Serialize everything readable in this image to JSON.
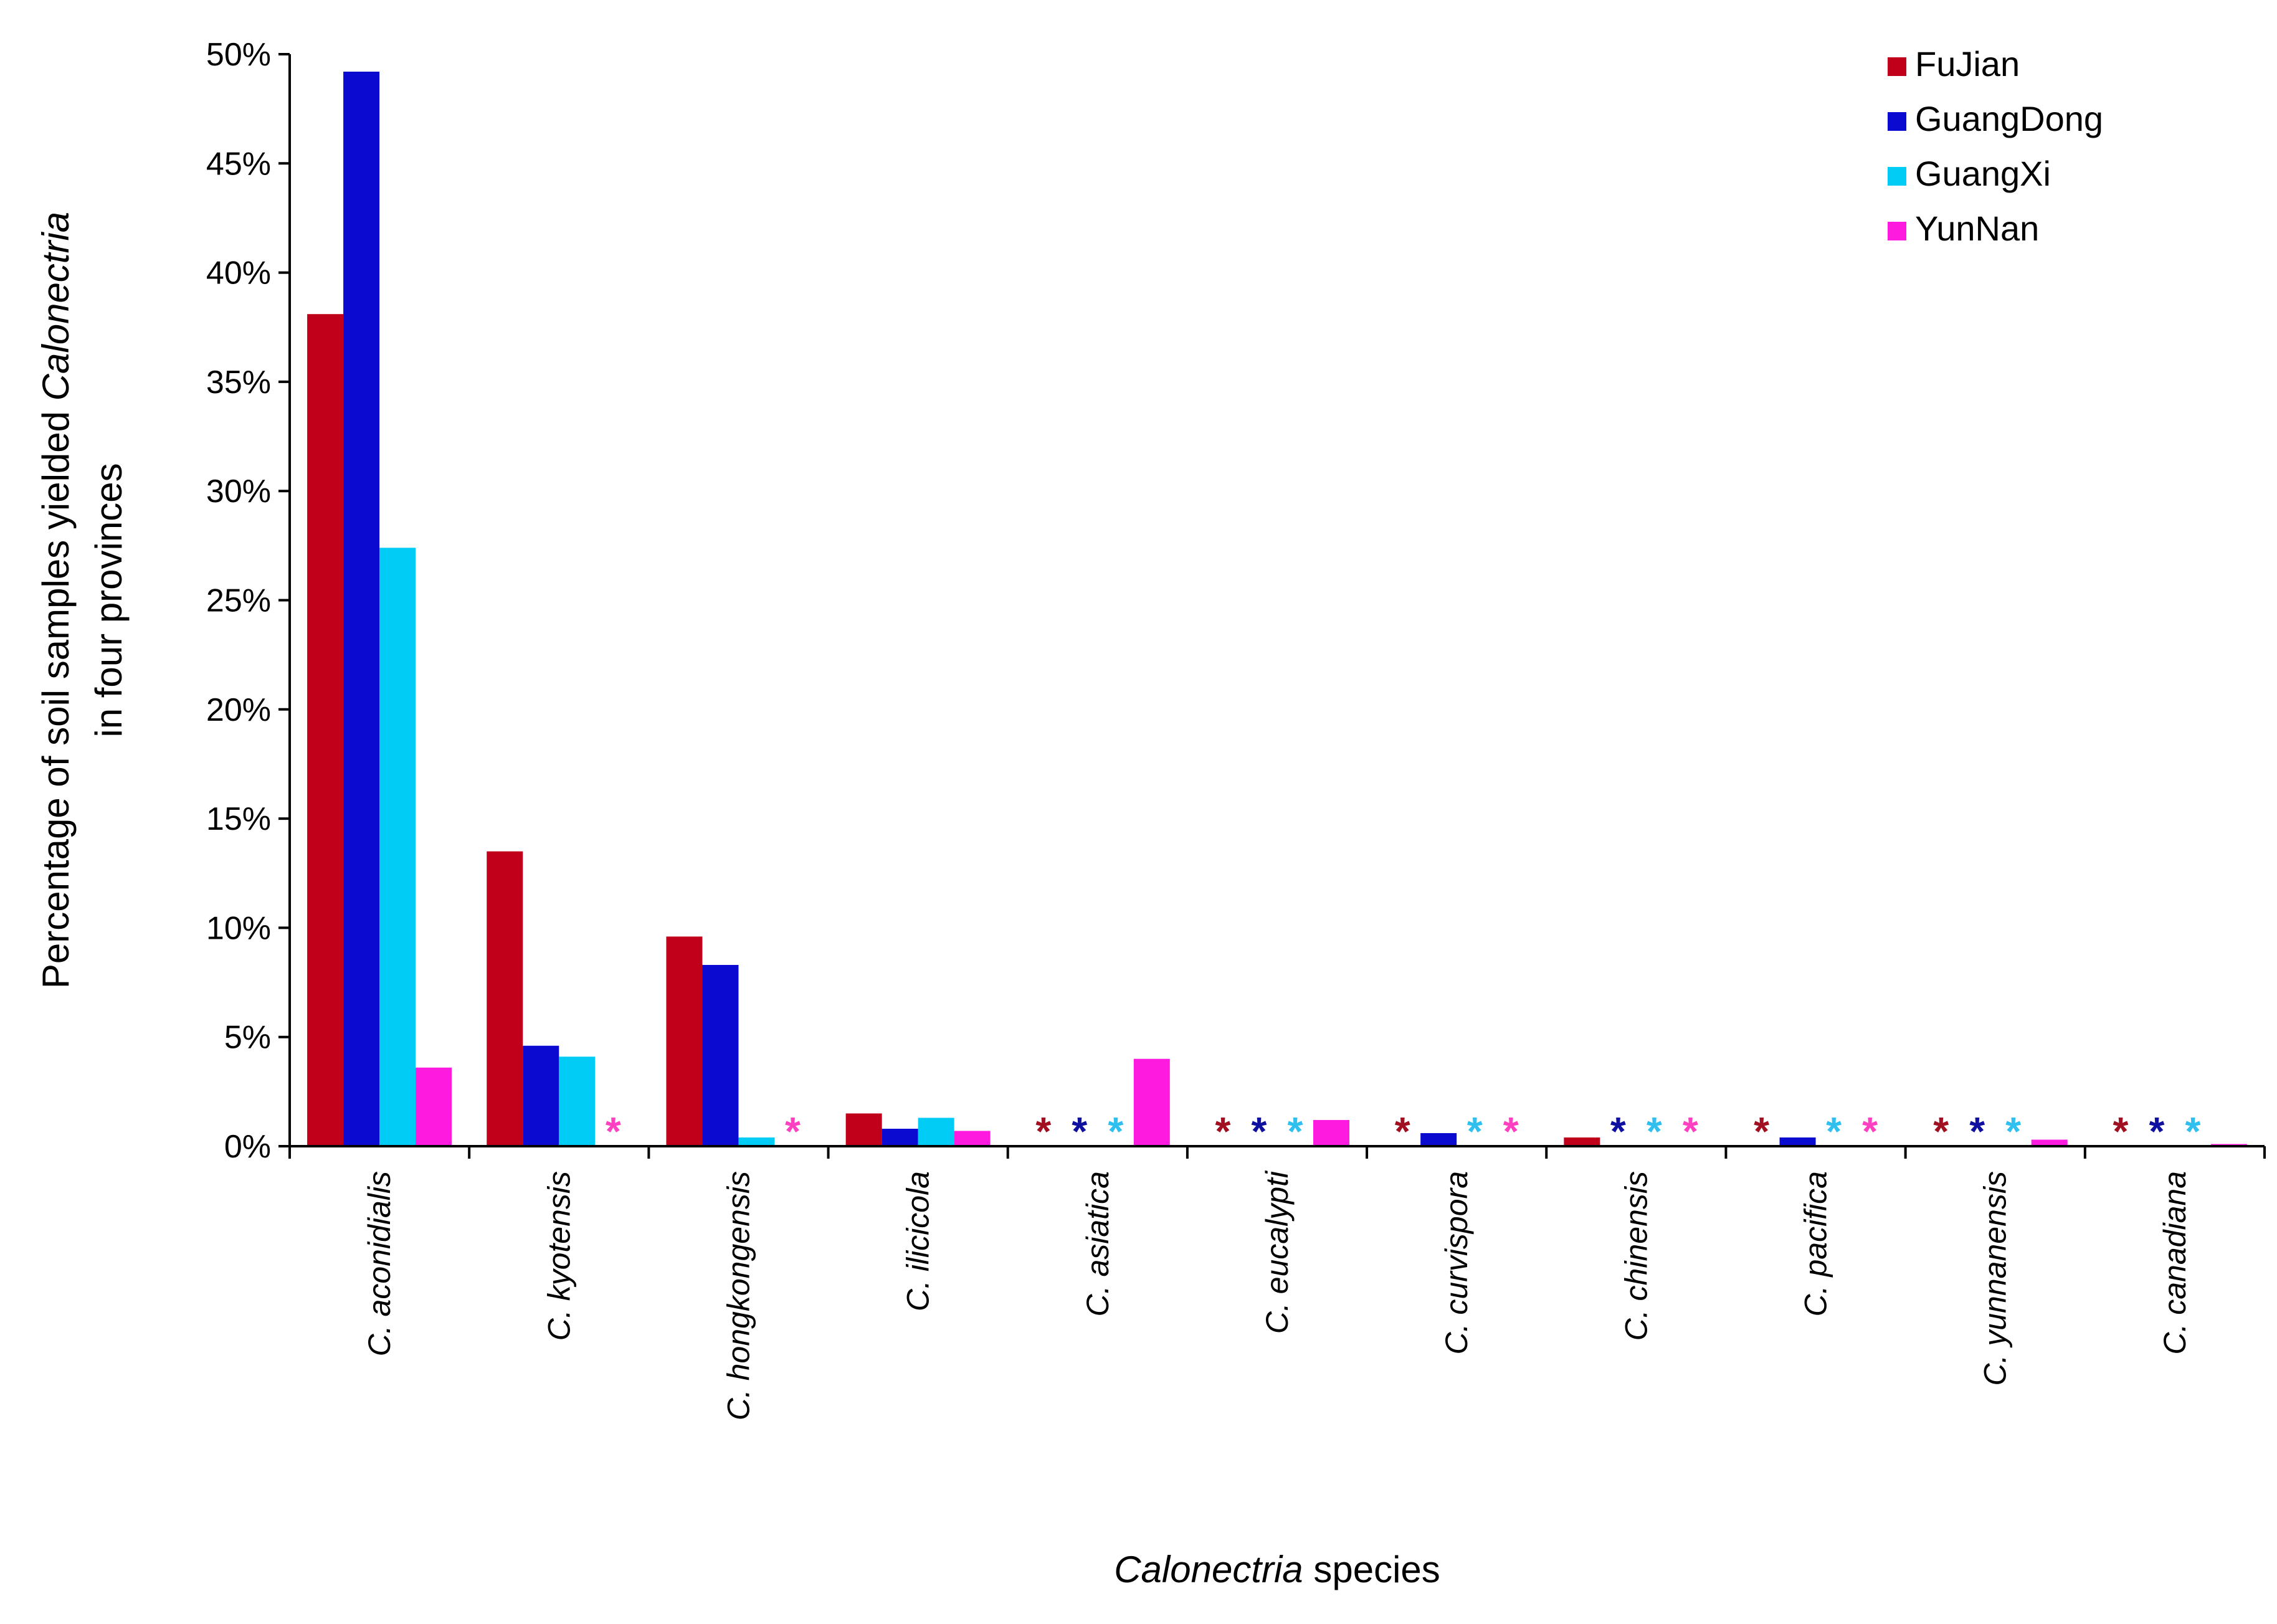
{
  "chart_data": {
    "type": "bar",
    "title": "",
    "xlabel": "Calonectria species",
    "xlabel_parts": [
      {
        "text": "Calonectria",
        "italic": true
      },
      {
        "text": " species",
        "italic": false
      }
    ],
    "ylabel": "Percentage of soil samples yielded Calonectria in four provinces",
    "ylabel_line1_parts": [
      {
        "text": "Percentage of soil samples yielded ",
        "italic": false
      },
      {
        "text": "Calonectria",
        "italic": true
      }
    ],
    "ylabel_line2": "in four provinces",
    "ylim": [
      0,
      50
    ],
    "yticks": [
      0,
      5,
      10,
      15,
      20,
      25,
      30,
      35,
      40,
      45,
      50
    ],
    "ytick_labels": [
      "0%",
      "5%",
      "10%",
      "15%",
      "20%",
      "25%",
      "30%",
      "35%",
      "40%",
      "45%",
      "50%"
    ],
    "grid": false,
    "legend_position": "top-right",
    "categories": [
      "C. aconidialis",
      "C. kyotensis",
      "C. hongkongensis",
      "C. ilicicola",
      "C. asiatica",
      "C. eucalypti",
      "C. curvispora",
      "C. chinensis",
      "C. pacifica",
      "C. yunnanensis",
      "C. canadiana"
    ],
    "series": [
      {
        "name": "FuJian",
        "color": "#c0001a",
        "values": [
          38.1,
          13.5,
          9.6,
          1.5,
          0,
          0,
          0,
          0.4,
          0,
          0,
          0
        ],
        "absent_marker": [
          false,
          false,
          false,
          false,
          true,
          true,
          true,
          false,
          true,
          true,
          true
        ]
      },
      {
        "name": "GuangDong",
        "color": "#0a0ad0",
        "values": [
          49.2,
          4.6,
          8.3,
          0.8,
          0,
          0,
          0.6,
          0,
          0.4,
          0,
          0
        ],
        "absent_marker": [
          false,
          false,
          false,
          false,
          true,
          true,
          false,
          true,
          false,
          true,
          true
        ]
      },
      {
        "name": "GuangXi",
        "color": "#00ccf5",
        "values": [
          27.4,
          4.1,
          0.4,
          1.3,
          0,
          0,
          0,
          0,
          0,
          0,
          0
        ],
        "absent_marker": [
          false,
          false,
          false,
          false,
          true,
          true,
          true,
          true,
          true,
          true,
          true
        ]
      },
      {
        "name": "YunNan",
        "color": "#ff1ae0",
        "values": [
          3.6,
          0,
          0,
          0.7,
          4.0,
          1.2,
          0,
          0,
          0,
          0.3,
          0.1
        ],
        "absent_marker": [
          false,
          true,
          true,
          false,
          false,
          false,
          true,
          true,
          true,
          false,
          false
        ]
      }
    ],
    "absent_marker_symbol": "*",
    "absent_marker_colors": [
      "#a01020",
      "#1010a0",
      "#30c0f0",
      "#ff40c0"
    ]
  }
}
